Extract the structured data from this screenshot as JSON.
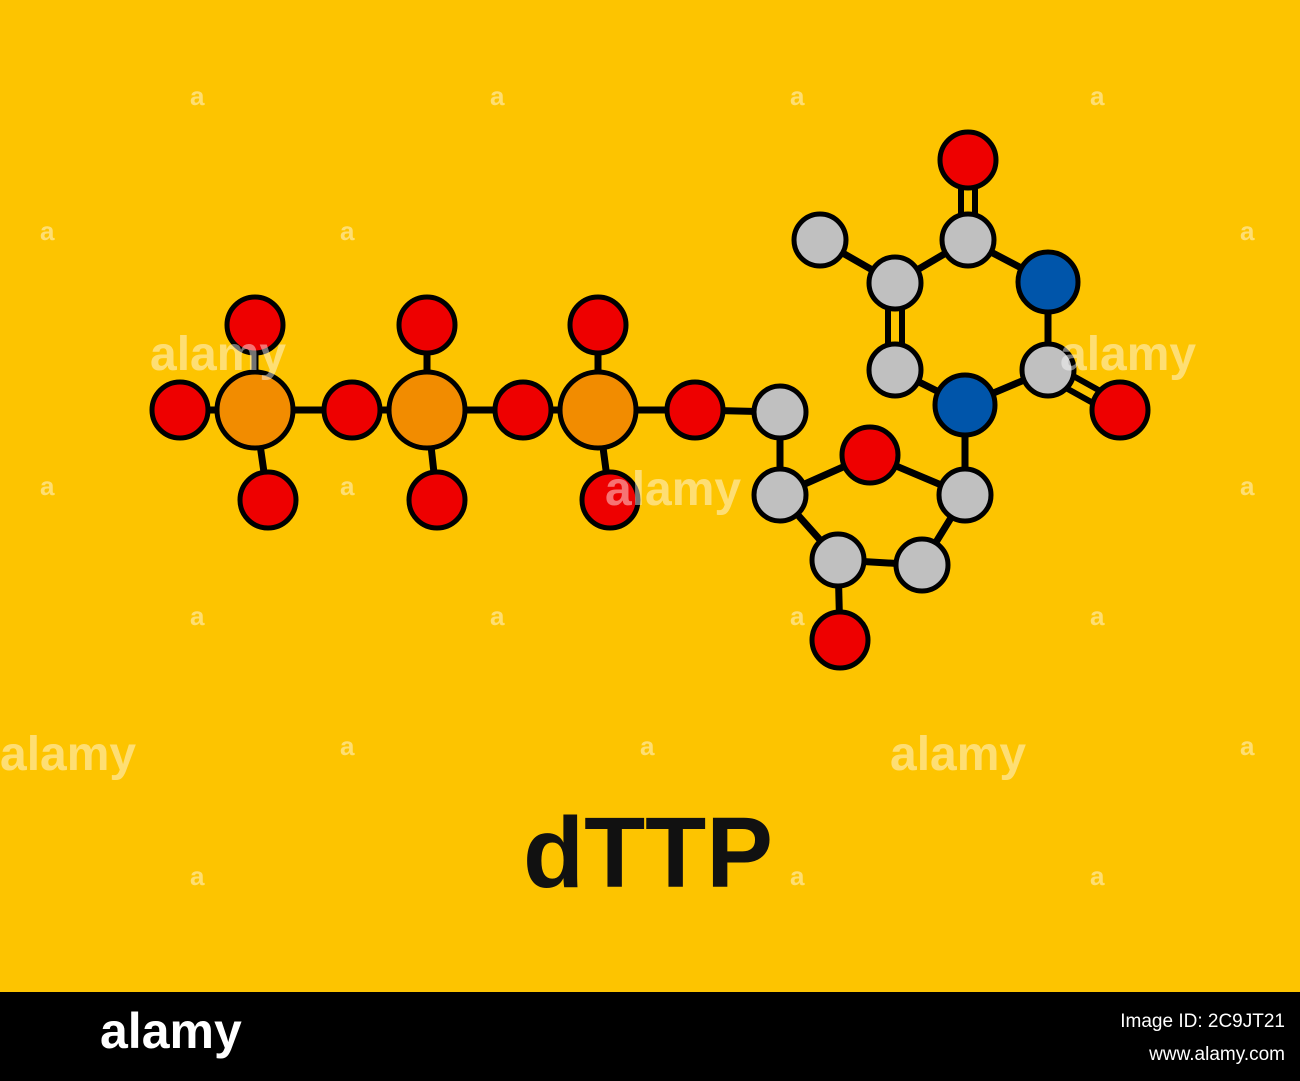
{
  "title": "dTTP",
  "watermark": {
    "brand": "alamy",
    "mark": "a"
  },
  "footer": {
    "brand": "alamy",
    "image_id": "Image ID: 2C9JT21",
    "url": "www.alamy.com"
  }
}
